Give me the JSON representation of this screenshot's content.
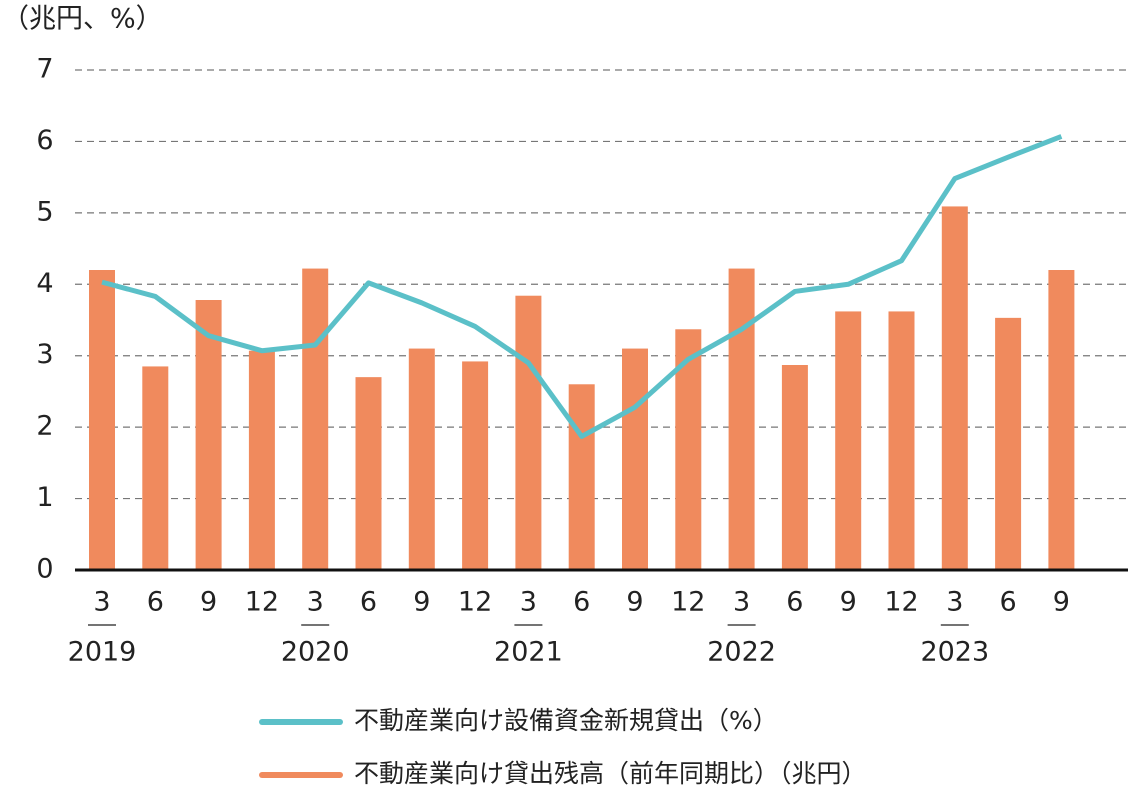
{
  "chart_data": {
    "type": "bar",
    "y_label": "（兆円、%）",
    "categories": [
      "3",
      "6",
      "9",
      "12",
      "3",
      "6",
      "9",
      "12",
      "3",
      "6",
      "9",
      "12",
      "3",
      "6",
      "9",
      "12",
      "3",
      "6",
      "9"
    ],
    "years": [
      "2019",
      null,
      null,
      null,
      "2020",
      null,
      null,
      null,
      "2021",
      null,
      null,
      null,
      "2022",
      null,
      null,
      null,
      "2023",
      null,
      null
    ],
    "series": [
      {
        "name": "不動産業向け設備資金新規貸出（%）",
        "type": "line",
        "color": "#5bc0c8",
        "values": [
          4.03,
          3.83,
          3.28,
          3.07,
          3.15,
          4.02,
          3.74,
          3.41,
          2.9,
          1.87,
          2.28,
          2.95,
          3.37,
          3.9,
          4.0,
          4.33,
          5.48,
          5.78,
          6.07
        ]
      },
      {
        "name": "不動産業向け貸出残高（前年同期比）（兆円）",
        "type": "bar",
        "color": "#f08a5d",
        "values": [
          4.2,
          2.85,
          3.78,
          3.07,
          4.22,
          2.7,
          3.1,
          2.92,
          3.84,
          2.6,
          3.1,
          3.37,
          4.22,
          2.87,
          3.62,
          3.62,
          5.09,
          3.53,
          4.2
        ]
      }
    ],
    "ylim": [
      0,
      7
    ],
    "yticks": [
      0,
      1,
      2,
      3,
      4,
      5,
      6,
      7
    ],
    "grid": true
  }
}
